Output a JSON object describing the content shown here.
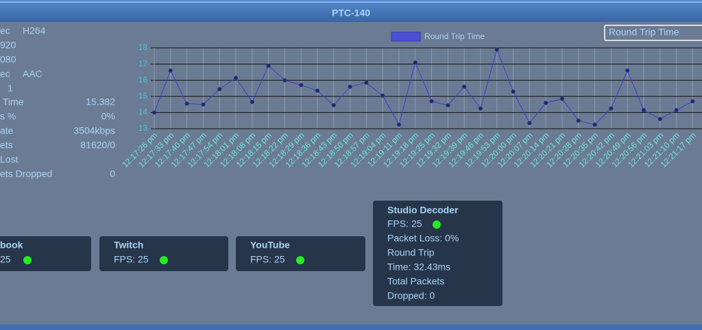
{
  "header": {
    "title": "PTC-140"
  },
  "stats": [
    {
      "label": "ec",
      "value": "H264"
    },
    {
      "label": "920"
    },
    {
      "label": "080"
    },
    {
      "label": "ec",
      "value": "AAC"
    },
    {
      "label": "1"
    },
    {
      "label": "Time",
      "value": "15.382"
    },
    {
      "label": "s %",
      "value": "0%"
    },
    {
      "label": "ate",
      "value": "3504kbps"
    },
    {
      "label": "ets",
      "value": "81620/0"
    },
    {
      "label": "Lost"
    },
    {
      "label": "ets Dropped",
      "value": "0"
    }
  ],
  "dropdown": {
    "selected": "Round Trip Time"
  },
  "chart_data": {
    "type": "line",
    "categories": [
      "12:17:26 pm",
      "12:17:33 pm",
      "12:17:40 pm",
      "12:17:47 pm",
      "12:17:54 pm",
      "12:18:01 pm",
      "12:18:08 pm",
      "12:18:15 pm",
      "12:18:22 pm",
      "12:18:29 pm",
      "12:18:36 pm",
      "12:18:43 pm",
      "12:18:50 pm",
      "12:18:57 pm",
      "12:19:04 pm",
      "12:19:11 pm",
      "12:19:18 pm",
      "12:19:25 pm",
      "12:19:32 pm",
      "12:19:39 pm",
      "12:19:46 pm",
      "12:19:53 pm",
      "12:20:00 pm",
      "12:20:07 pm",
      "12:20:14 pm",
      "12:20:21 pm",
      "12:20:28 pm",
      "12:20:35 pm",
      "12:20:42 pm",
      "12:20:49 pm",
      "12:20:56 pm",
      "12:21:03 pm",
      "12:21:10 pm",
      "12:21:17 pm"
    ],
    "series": [
      {
        "name": "Round Trip Time",
        "color": "#3a3fd0",
        "values": [
          14.0,
          16.6,
          14.55,
          14.5,
          15.45,
          16.15,
          14.65,
          16.9,
          16.0,
          15.7,
          15.35,
          14.45,
          15.6,
          15.85,
          15.05,
          13.25,
          17.1,
          14.7,
          14.45,
          15.6,
          14.25,
          17.9,
          15.3,
          13.35,
          14.6,
          14.85,
          13.5,
          13.25,
          14.25,
          16.6,
          14.15,
          13.6,
          14.15,
          14.7
        ]
      }
    ],
    "ylim": [
      13,
      18
    ],
    "yticks": [
      13,
      14,
      15,
      16,
      17,
      18
    ],
    "grid": true
  },
  "cards": [
    {
      "title": "book",
      "lines": [
        "25"
      ]
    },
    {
      "title": "Twitch",
      "lines": [
        "FPS: 25"
      ]
    },
    {
      "title": "YouTube",
      "lines": [
        "FPS: 25"
      ]
    },
    {
      "title": "Studio Decoder",
      "lines": [
        "FPS: 25",
        "Packet Loss: 0%",
        "Round Trip",
        "Time: 32.43ms",
        "Total Packets",
        "Dropped: 0"
      ]
    }
  ]
}
